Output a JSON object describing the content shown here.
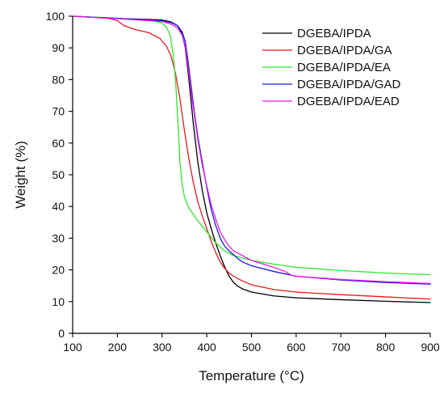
{
  "chart_data": {
    "type": "line",
    "xlabel": "Temperature (°C)",
    "ylabel": "Weight (%)",
    "xlim": [
      100,
      900
    ],
    "ylim": [
      0,
      100
    ],
    "xticks": [
      100,
      200,
      300,
      400,
      500,
      600,
      700,
      800,
      900
    ],
    "yticks": [
      0,
      10,
      20,
      30,
      40,
      50,
      60,
      70,
      80,
      90,
      100
    ],
    "grid": false,
    "legend_position": "top-right",
    "series": [
      {
        "name": "DGEBA/IPDA",
        "color": "#000000",
        "x": [
          100,
          200,
          300,
          320,
          335,
          345,
          352,
          360,
          370,
          380,
          390,
          400,
          410,
          420,
          430,
          440,
          450,
          460,
          470,
          480,
          500,
          550,
          600,
          700,
          800,
          900
        ],
        "y": [
          100,
          99.3,
          98.8,
          98.2,
          97.0,
          94.5,
          90.0,
          80.0,
          66.0,
          54.0,
          45.0,
          38.0,
          33.0,
          28.5,
          24.5,
          21.0,
          18.0,
          16.0,
          14.8,
          14.0,
          13.0,
          11.8,
          11.2,
          10.6,
          10.1,
          9.7
        ]
      },
      {
        "name": "DGEBA/IPDA/GA",
        "color": "#e8191c",
        "x": [
          100,
          180,
          200,
          215,
          240,
          270,
          295,
          310,
          320,
          330,
          340,
          350,
          360,
          370,
          380,
          390,
          400,
          410,
          420,
          430,
          440,
          450,
          460,
          480,
          500,
          550,
          600,
          700,
          800,
          900
        ],
        "y": [
          100,
          99.3,
          98.6,
          97.0,
          95.8,
          94.8,
          93.0,
          90.5,
          87.5,
          82.0,
          74.0,
          64.0,
          55.0,
          47.5,
          41.5,
          37.0,
          33.0,
          29.0,
          25.5,
          22.5,
          20.5,
          19.0,
          18.0,
          16.5,
          15.3,
          13.8,
          13.0,
          12.2,
          11.5,
          10.8
        ]
      },
      {
        "name": "DGEBA/IPDA/EA",
        "color": "#2be82b",
        "x": [
          100,
          200,
          280,
          300,
          310,
          318,
          325,
          330,
          335,
          340,
          345,
          350,
          360,
          380,
          400,
          420,
          440,
          460,
          480,
          500,
          550,
          600,
          700,
          800,
          900
        ],
        "y": [
          100,
          99.4,
          98.6,
          97.8,
          96.5,
          94.0,
          88.0,
          80.0,
          68.0,
          54.0,
          47.0,
          43.0,
          39.5,
          35.5,
          32.0,
          28.5,
          26.0,
          24.5,
          23.8,
          23.0,
          21.8,
          20.8,
          19.8,
          19.0,
          18.5
        ]
      },
      {
        "name": "DGEBA/IPDA/GAD",
        "color": "#1a1ae8",
        "x": [
          100,
          200,
          300,
          320,
          335,
          345,
          352,
          358,
          365,
          372,
          380,
          390,
          400,
          410,
          420,
          430,
          440,
          450,
          460,
          470,
          480,
          500,
          550,
          600,
          700,
          800,
          900
        ],
        "y": [
          100,
          99.3,
          98.6,
          98.0,
          97.0,
          95.0,
          92.0,
          86.0,
          78.0,
          70.0,
          62.0,
          54.0,
          46.0,
          39.0,
          34.0,
          30.0,
          27.5,
          26.0,
          24.8,
          23.5,
          22.5,
          21.3,
          19.5,
          18.0,
          16.8,
          16.0,
          15.5
        ]
      },
      {
        "name": "DGEBA/IPDA/EAD",
        "color": "#e81ae8",
        "x": [
          100,
          200,
          300,
          320,
          335,
          345,
          352,
          358,
          365,
          372,
          380,
          390,
          400,
          410,
          420,
          430,
          440,
          450,
          460,
          480,
          500,
          550,
          575,
          590,
          600,
          700,
          800,
          900
        ],
        "y": [
          100,
          99.2,
          98.3,
          97.5,
          96.3,
          94.0,
          90.5,
          84.0,
          76.0,
          69.0,
          61.0,
          53.0,
          46.5,
          40.5,
          36.0,
          32.0,
          29.5,
          27.5,
          26.0,
          24.5,
          23.0,
          20.8,
          19.5,
          18.3,
          18.0,
          17.0,
          16.3,
          15.7
        ]
      }
    ]
  }
}
